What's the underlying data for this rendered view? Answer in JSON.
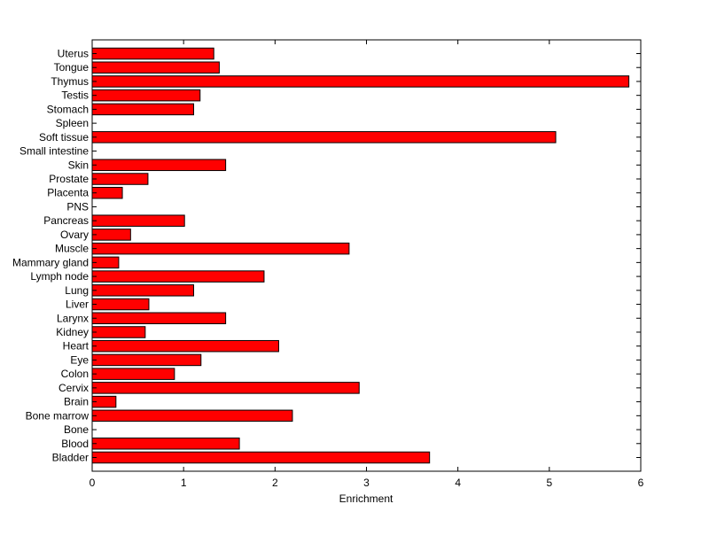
{
  "chart_data": {
    "type": "bar",
    "orientation": "horizontal",
    "title": "",
    "xlabel": "Enrichment",
    "ylabel": "",
    "xlim": [
      0,
      6
    ],
    "xticks": [
      0,
      1,
      2,
      3,
      4,
      5,
      6
    ],
    "grid": false,
    "legend": "none",
    "bar_color": "#ff0000",
    "edge_color": "#000000",
    "categories": [
      "Bladder",
      "Blood",
      "Bone",
      "Bone marrow",
      "Brain",
      "Cervix",
      "Colon",
      "Eye",
      "Heart",
      "Kidney",
      "Larynx",
      "Liver",
      "Lung",
      "Lymph node",
      "Mammary gland",
      "Muscle",
      "Ovary",
      "Pancreas",
      "PNS",
      "Placenta",
      "Prostate",
      "Skin",
      "Small intestine",
      "Soft tissue",
      "Spleen",
      "Stomach",
      "Testis",
      "Thymus",
      "Tongue",
      "Uterus"
    ],
    "values": [
      3.69,
      1.61,
      0.0,
      2.19,
      0.26,
      2.92,
      0.9,
      1.19,
      2.04,
      0.58,
      1.46,
      0.62,
      1.11,
      1.88,
      0.29,
      2.81,
      0.42,
      1.01,
      0.0,
      0.33,
      0.61,
      1.46,
      0.0,
      5.07,
      0.0,
      1.11,
      1.18,
      5.87,
      1.39,
      1.33
    ]
  }
}
